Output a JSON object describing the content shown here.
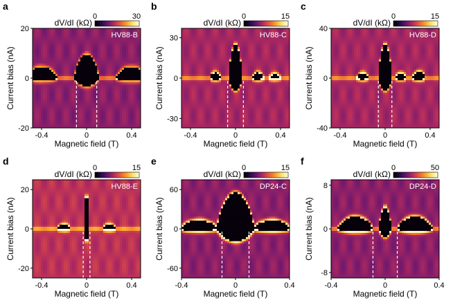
{
  "colormap": [
    "#000000",
    "#2b0a4f",
    "#6a1670",
    "#b32b5e",
    "#e8593b",
    "#f79b2b",
    "#fde266",
    "#fffbd6"
  ],
  "chart_data": [
    {
      "type": "heatmap",
      "letter": "a",
      "device": "HV88-B",
      "xlabel": "Magnetic field (T)",
      "ylabel": "Current bias (nA)",
      "xlim": [
        -0.48,
        0.48
      ],
      "ylim": [
        -20,
        20
      ],
      "xticks": [
        {
          "v": -0.4,
          "t": "-0.4"
        },
        {
          "v": 0,
          "t": "0"
        },
        {
          "v": 0.4,
          "t": "0.4"
        }
      ],
      "yticks": [
        {
          "v": -20,
          "t": "-20"
        },
        {
          "v": 0,
          "t": "0"
        },
        {
          "v": 20,
          "t": "20"
        }
      ],
      "colorbar": {
        "label": "dV/dI (kΩ)",
        "min": 0,
        "max": 30,
        "min_label": "0",
        "max_label": "30"
      },
      "critical_field_markers": [
        -0.09,
        0.09
      ],
      "peak": {
        "center": 0,
        "width": 0.11,
        "height": 9.5
      },
      "side_lobes": [
        {
          "center": -0.4,
          "width": 0.14,
          "height": 4.5
        },
        {
          "center": 0.4,
          "width": 0.14,
          "height": 4.5
        }
      ],
      "blob_intensity": 0.6,
      "background": 0.35
    },
    {
      "type": "heatmap",
      "letter": "b",
      "device": "HV88-C",
      "xlabel": "Magnetic field (T)",
      "ylabel": "Current bias (nA)",
      "xlim": [
        -0.48,
        0.48
      ],
      "ylim": [
        -37,
        37
      ],
      "xticks": [
        {
          "v": -0.4,
          "t": "-0.4"
        },
        {
          "v": 0,
          "t": "0"
        },
        {
          "v": 0.4,
          "t": "0.4"
        }
      ],
      "yticks": [
        {
          "v": -30,
          "t": "-30"
        },
        {
          "v": 0,
          "t": "0"
        },
        {
          "v": 30,
          "t": "30"
        }
      ],
      "colorbar": {
        "label": "dV/dI (kΩ)",
        "min": 0,
        "max": 15,
        "min_label": "0",
        "max_label": "15"
      },
      "critical_field_markers": [
        -0.07,
        0.07
      ],
      "peak": {
        "center": 0,
        "width": 0.06,
        "height": 25
      },
      "side_lobes": [
        {
          "center": -0.18,
          "width": 0.05,
          "height": 4
        },
        {
          "center": 0.2,
          "width": 0.05,
          "height": 4
        },
        {
          "center": 0.35,
          "width": 0.05,
          "height": 3
        }
      ],
      "blob_intensity": 0.9,
      "background": 0.4
    },
    {
      "type": "heatmap",
      "letter": "c",
      "device": "HV88-D",
      "xlabel": "Magnetic field (T)",
      "ylabel": "Current bias (nA)",
      "xlim": [
        -0.48,
        0.48
      ],
      "ylim": [
        -40,
        40
      ],
      "xticks": [
        {
          "v": -0.4,
          "t": "-0.4"
        },
        {
          "v": 0,
          "t": "0"
        },
        {
          "v": 0.4,
          "t": "0.4"
        }
      ],
      "yticks": [
        {
          "v": -40,
          "t": "-40"
        },
        {
          "v": 0,
          "t": "0"
        },
        {
          "v": 40,
          "t": "40"
        }
      ],
      "colorbar": {
        "label": "dV/dI (kΩ)",
        "min": 0,
        "max": 15,
        "min_label": "0",
        "max_label": "15"
      },
      "critical_field_markers": [
        -0.06,
        0.06
      ],
      "peak": {
        "center": 0,
        "width": 0.06,
        "height": 27
      },
      "side_lobes": [
        {
          "center": -0.2,
          "width": 0.05,
          "height": 4
        },
        {
          "center": 0.14,
          "width": 0.05,
          "height": 4
        },
        {
          "center": 0.3,
          "width": 0.06,
          "height": 5
        }
      ],
      "blob_intensity": 0.9,
      "background": 0.4
    },
    {
      "type": "heatmap",
      "letter": "d",
      "device": "HV88-E",
      "xlabel": "Magnetic field (T)",
      "ylabel": "Current bias (nA)",
      "xlim": [
        -0.48,
        0.48
      ],
      "ylim": [
        -25,
        25
      ],
      "xticks": [
        {
          "v": -0.4,
          "t": "-0.4"
        },
        {
          "v": 0,
          "t": "0"
        },
        {
          "v": 0.4,
          "t": "0.4"
        }
      ],
      "yticks": [
        {
          "v": -20,
          "t": "-20"
        },
        {
          "v": 0,
          "t": "0"
        },
        {
          "v": 20,
          "t": "20"
        }
      ],
      "colorbar": {
        "label": "dV/dI (kΩ)",
        "min": 0,
        "max": 15,
        "min_label": "0",
        "max_label": "15"
      },
      "critical_field_markers": [
        -0.03,
        0.03
      ],
      "peak": {
        "center": 0,
        "width": 0.025,
        "height": 18
      },
      "side_lobes": [
        {
          "center": -0.2,
          "width": 0.06,
          "height": 2
        },
        {
          "center": 0.2,
          "width": 0.06,
          "height": 2
        }
      ],
      "blob_intensity": 0.9,
      "background": 0.45
    },
    {
      "type": "heatmap",
      "letter": "e",
      "device": "DP24-C",
      "xlabel": "Magnetic field (T)",
      "ylabel": "Current bias (nA)",
      "xlim": [
        -0.4,
        0.4
      ],
      "ylim": [
        -75,
        75
      ],
      "xticks": [
        {
          "v": -0.4,
          "t": "-0.4"
        },
        {
          "v": 0,
          "t": "0"
        },
        {
          "v": 0.4,
          "t": "0.4"
        }
      ],
      "yticks": [
        {
          "v": -60,
          "t": "-60"
        },
        {
          "v": 0,
          "t": "0"
        },
        {
          "v": 60,
          "t": "60"
        }
      ],
      "colorbar": {
        "label": "dV/dI (kΩ)",
        "min": 0,
        "max": 15,
        "min_label": "0",
        "max_label": "15"
      },
      "critical_field_markers": [
        -0.1,
        0.1
      ],
      "peak": {
        "center": 0,
        "width": 0.14,
        "height": 55
      },
      "side_lobes": [
        {
          "center": -0.27,
          "width": 0.14,
          "height": 13
        },
        {
          "center": 0.27,
          "width": 0.14,
          "height": 13
        }
      ],
      "blob_intensity": 1.0,
      "background": 0.35
    },
    {
      "type": "heatmap",
      "letter": "f",
      "device": "DP24-D",
      "xlabel": "Magnetic field (T)",
      "ylabel": "Current bias (nA)",
      "xlim": [
        -0.4,
        0.4
      ],
      "ylim": [
        -9,
        9
      ],
      "xticks": [
        {
          "v": -0.4,
          "t": "-0.4"
        },
        {
          "v": 0,
          "t": "0"
        },
        {
          "v": 0.4,
          "t": "0.4"
        }
      ],
      "yticks": [
        {
          "v": -8,
          "t": "-8"
        },
        {
          "v": 0,
          "t": "0"
        },
        {
          "v": 8,
          "t": "8"
        }
      ],
      "colorbar": {
        "label": "dV/dI (kΩ)",
        "min": 0,
        "max": 50,
        "min_label": "0",
        "max_label": "50"
      },
      "critical_field_markers": [
        -0.09,
        0.09
      ],
      "peak": {
        "center": 0,
        "width": 0.045,
        "height": 4
      },
      "side_lobes": [
        {
          "center": -0.22,
          "width": 0.13,
          "height": 2.2
        },
        {
          "center": 0.22,
          "width": 0.13,
          "height": 2.2
        }
      ],
      "blob_intensity": 1.0,
      "background": 0.35
    }
  ]
}
